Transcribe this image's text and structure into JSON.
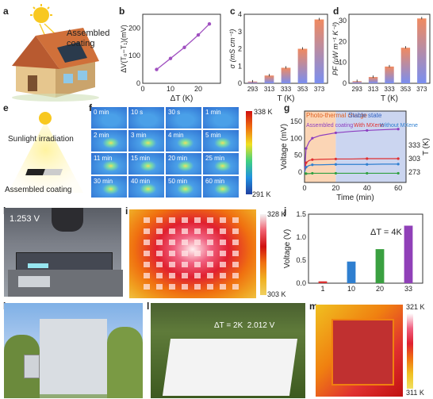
{
  "panel_labels": [
    "a",
    "b",
    "c",
    "d",
    "e",
    "f",
    "g",
    "h",
    "i",
    "j",
    "k",
    "l",
    "m"
  ],
  "a": {
    "caption": "Assembled\ncoating"
  },
  "b": {
    "ylabel": "ΔV(T₀−T₁)(mV)",
    "xlabel": "ΔT (K)"
  },
  "c": {
    "ylabel": "σ (mS cm⁻¹)",
    "xlabel": "T (K)"
  },
  "d": {
    "ylabel": "PF (μW m⁻¹ K⁻²)",
    "xlabel": "T (K)"
  },
  "e": {
    "top": "Sunlight irradiation",
    "bottom": "Assembled coating"
  },
  "f": {
    "times": [
      "0 min",
      "10 s",
      "30 s",
      "1 min",
      "2 min",
      "3 min",
      "4 min",
      "5 min",
      "11 min",
      "15 min",
      "20 min",
      "25 min",
      "30 min",
      "40 min",
      "50 min",
      "60 min"
    ],
    "scale_max": "338 K",
    "scale_min": "291 K"
  },
  "g": {
    "phase1": "Photo-thermal charge",
    "phase2": "Stable state",
    "legend": [
      "Assembled coating",
      "With MXene",
      "Without MXene"
    ],
    "ylabel": "Voltage (mV)",
    "xlabel": "Time (min)",
    "y2label": "T (K)"
  },
  "h": {
    "reading": "1.253 V"
  },
  "i": {
    "scale_max": "328 K",
    "scale_min": "303 K"
  },
  "j": {
    "annotation": "ΔT = 4K",
    "ylabel": "Voltage (V)"
  },
  "l": {
    "annotation": "ΔT = 2K  2.012 V"
  },
  "m": {
    "scale_max": "321 K",
    "scale_min": "311 K"
  },
  "chart_data": [
    {
      "type": "line",
      "panel": "b",
      "x": [
        5,
        10,
        15,
        20,
        24
      ],
      "values": [
        50,
        90,
        130,
        175,
        215
      ],
      "xlabel": "ΔT (K)",
      "ylabel": "ΔV(T₀−T₁)(mV)",
      "xticks": [
        0,
        10,
        20
      ],
      "yticks": [
        0,
        100,
        200
      ],
      "xlim": [
        0,
        28
      ],
      "ylim": [
        0,
        250
      ],
      "color": "#a050c0"
    },
    {
      "type": "bar",
      "panel": "c",
      "categories": [
        "293",
        "313",
        "333",
        "353",
        "373"
      ],
      "values": [
        0.1,
        0.45,
        0.9,
        2.0,
        3.7
      ],
      "xlabel": "T (K)",
      "ylabel": "σ (mS cm⁻¹)",
      "yticks": [
        0,
        1,
        2,
        3,
        4
      ],
      "ylim": [
        0,
        4
      ]
    },
    {
      "type": "bar",
      "panel": "d",
      "categories": [
        "293",
        "313",
        "333",
        "353",
        "373"
      ],
      "values": [
        1,
        3,
        8,
        17,
        31
      ],
      "xlabel": "T (K)",
      "ylabel": "PF (μW m⁻¹ K⁻²)",
      "yticks": [
        0,
        10,
        20,
        30
      ],
      "ylim": [
        0,
        33
      ]
    },
    {
      "type": "line",
      "panel": "g",
      "xticks": [
        0,
        20,
        40,
        60
      ],
      "yticks": [
        0,
        50,
        100,
        150
      ],
      "ylim": [
        -30,
        180
      ],
      "xlim": [
        0,
        65
      ],
      "series": [
        {
          "name": "Assembled coating",
          "color": "#8d3fc0",
          "x": [
            0,
            1,
            3,
            5,
            10,
            20,
            30,
            40,
            50,
            60
          ],
          "values": [
            0,
            70,
            90,
            100,
            108,
            116,
            120,
            123,
            125,
            127
          ]
        },
        {
          "name": "With MXene",
          "color": "#e03030",
          "x": [
            0,
            1,
            3,
            5,
            10,
            20,
            30,
            40,
            50,
            60
          ],
          "values": [
            0,
            28,
            35,
            37,
            38,
            39,
            39,
            40,
            40,
            40
          ]
        },
        {
          "name": "Without MXene",
          "color": "#2f7fd0",
          "x": [
            0,
            1,
            3,
            5,
            10,
            20,
            30,
            40,
            50,
            60
          ],
          "values": [
            0,
            15,
            20,
            22,
            22,
            23,
            23,
            23,
            24,
            24
          ]
        },
        {
          "name": "",
          "color": "#30a040",
          "x": [
            0,
            1,
            3,
            5,
            10,
            20,
            30,
            40,
            50,
            60
          ],
          "values": [
            0,
            -4,
            -4,
            -3,
            -3,
            -3,
            -3,
            -3,
            -3,
            -3
          ]
        }
      ]
    },
    {
      "type": "bar",
      "panel": "j",
      "categories": [
        "1",
        "10",
        "20",
        "33"
      ],
      "values": [
        0.04,
        0.47,
        0.74,
        1.25
      ],
      "colors": [
        "#d83030",
        "#2f7fd0",
        "#3aa040",
        "#9040b8"
      ],
      "ylabel": "Voltage (V)",
      "yticks": [
        0.0,
        0.5,
        1.0,
        1.5
      ],
      "ylim": [
        0,
        1.5
      ]
    }
  ],
  "colors": {
    "purple": "#a050c0",
    "red": "#e03030",
    "blue": "#2f7fd0",
    "green": "#30a040",
    "orange_phase": "#fbd5b5",
    "blue_phase": "#cbd5f0"
  }
}
